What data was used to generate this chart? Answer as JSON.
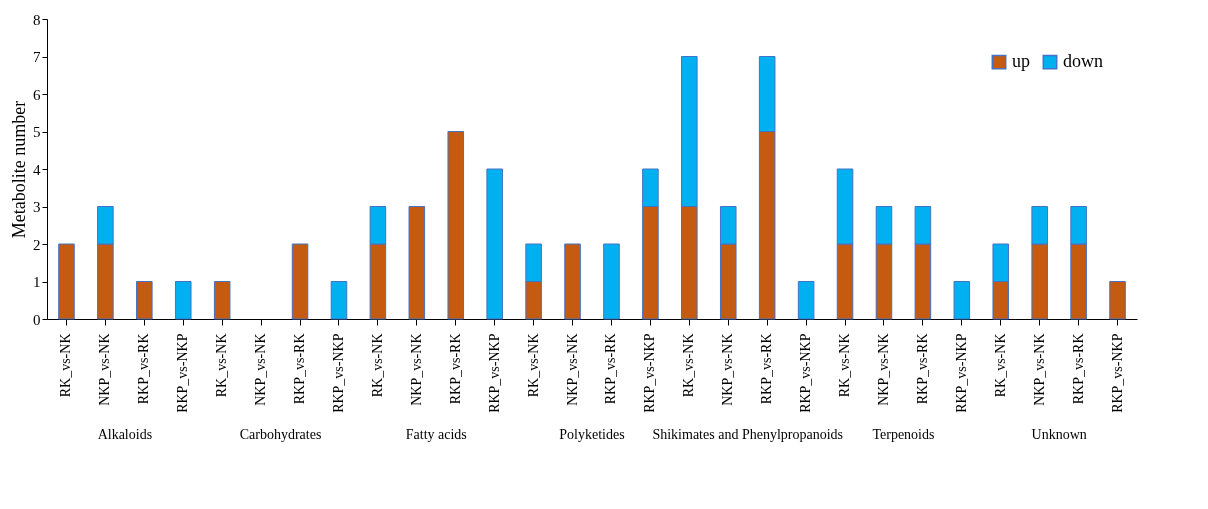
{
  "chart_data": {
    "type": "bar",
    "stacked": true,
    "ylabel": "Metabolite number",
    "categories": [
      "RK_vs-NK",
      "NKP_vs-NK",
      "RKP_vs-RK",
      "RKP_vs-NKP",
      "RK_vs-NK",
      "NKP_vs-NK",
      "RKP_vs-RK",
      "RKP_vs-NKP",
      "RK_vs-NK",
      "NKP_vs-NK",
      "RKP_vs-RK",
      "RKP_vs-NKP",
      "RK_vs-NK",
      "NKP_vs-NK",
      "RKP_vs-RK",
      "RKP_vs-NKP",
      "RK_vs-NK",
      "NKP_vs-NK",
      "RKP_vs-RK",
      "RKP_vs-NKP",
      "RK_vs-NK",
      "NKP_vs-NK",
      "RKP_vs-RK",
      "RKP_vs-NKP",
      "RK_vs-NK",
      "NKP_vs-NK",
      "RKP_vs-RK",
      "RKP_vs-NKP"
    ],
    "series": [
      {
        "name": "up",
        "color": "#c55a11",
        "values": [
          2,
          2,
          1,
          0,
          1,
          0,
          2,
          0,
          2,
          3,
          5,
          0,
          1,
          2,
          0,
          3,
          3,
          2,
          5,
          0,
          2,
          2,
          2,
          0,
          1,
          2,
          2,
          1
        ]
      },
      {
        "name": "down",
        "color": "#00b0f0",
        "values": [
          0,
          1,
          0,
          1,
          0,
          0,
          0,
          1,
          1,
          0,
          0,
          4,
          1,
          0,
          2,
          1,
          4,
          1,
          2,
          1,
          2,
          1,
          1,
          1,
          1,
          1,
          1,
          0
        ]
      }
    ],
    "ylim": [
      0,
      8
    ],
    "yticks": [
      0,
      1,
      2,
      3,
      4,
      5,
      6,
      7,
      8
    ],
    "grid": false,
    "legend": "top right",
    "annotations": [
      "Alkaloids",
      "Carbohydrates",
      "Fatty acids",
      "Polyketides",
      "Shikimates and Phenylpropanoids",
      "Terpenoids",
      "Unknown"
    ]
  }
}
